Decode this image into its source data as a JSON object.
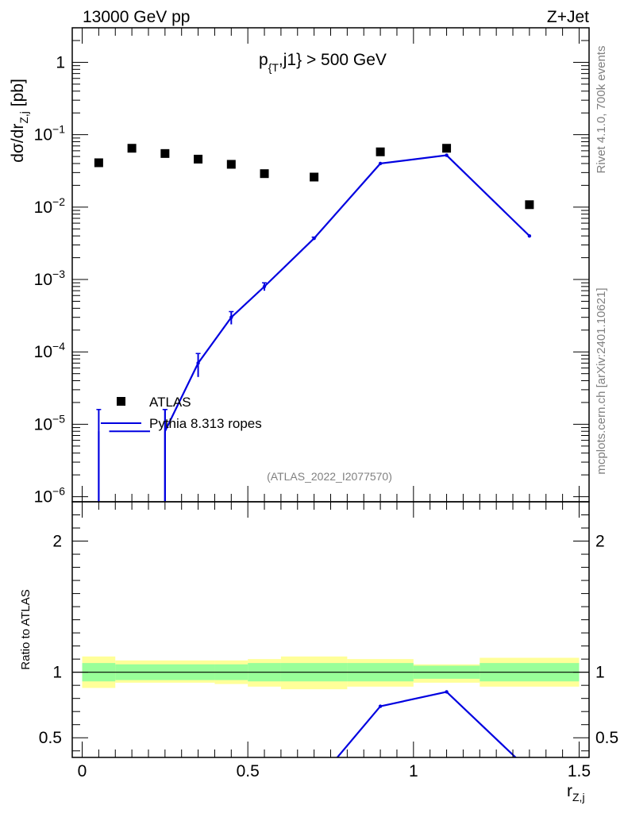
{
  "header": {
    "left": "13000 GeV pp",
    "right": "Z+Jet",
    "cut_label": "p_{T},j1} > 500 GeV",
    "cut_main": "p",
    "cut_sub": "{T",
    "cut_rest": ",j1} > 500 GeV"
  },
  "side_labels": {
    "rivet": "Rivet 4.1.0,  700k events",
    "mcplots": "mcplots.cern.ch [arXiv:2401.10621]"
  },
  "analysis_id": "(ATLAS_2022_I2077570)",
  "legend": {
    "data": "ATLAS",
    "mc": "Pythia 8.313 ropes"
  },
  "colors": {
    "data": "#000000",
    "mc": "#0000e0",
    "band_inner": "#99ff99",
    "band_outer": "#ffff99"
  },
  "chart_data": [
    {
      "type": "scatter",
      "title": "p_{T},j1} > 500 GeV",
      "xlabel": "r_{Z,j}",
      "xlabel_main": "r",
      "xlabel_sub": "Z,j",
      "ylabel": "dσ/dr_{Z,j} [pb]",
      "ylabel_main": "dσ/dr",
      "ylabel_sub": "Z,j",
      "ylabel_unit": " [pb]",
      "yscale": "log",
      "ylim": [
        8.5e-07,
        3.0
      ],
      "xlim": [
        -0.03,
        1.53
      ],
      "yticks": [
        {
          "v": 1,
          "base": "1",
          "exp": ""
        },
        {
          "v": 0.1,
          "base": "10",
          "exp": "−1"
        },
        {
          "v": 0.01,
          "base": "10",
          "exp": "−2"
        },
        {
          "v": 0.001,
          "base": "10",
          "exp": "−3"
        },
        {
          "v": 0.0001,
          "base": "10",
          "exp": "−4"
        },
        {
          "v": 1e-05,
          "base": "10",
          "exp": "−5"
        },
        {
          "v": 1e-06,
          "base": "10",
          "exp": "−6"
        }
      ],
      "series": [
        {
          "name": "ATLAS",
          "marker": "square",
          "x": [
            0.05,
            0.15,
            0.25,
            0.35,
            0.45,
            0.55,
            0.7,
            0.9,
            1.1,
            1.35
          ],
          "y": [
            0.041,
            0.065,
            0.055,
            0.046,
            0.039,
            0.029,
            0.026,
            0.058,
            0.065,
            0.0108
          ]
        },
        {
          "name": "Pythia 8.313 ropes",
          "marker": "line",
          "bins": [
            [
              0.0,
              0.1
            ],
            [
              0.1,
              0.2
            ],
            [
              0.2,
              0.3
            ],
            [
              0.3,
              0.4
            ],
            [
              0.4,
              0.5
            ],
            [
              0.5,
              0.6
            ],
            [
              0.6,
              0.8
            ],
            [
              0.8,
              1.0
            ],
            [
              1.0,
              1.2
            ],
            [
              1.2,
              1.5
            ]
          ],
          "x": [
            0.05,
            0.15,
            0.25,
            0.35,
            0.45,
            0.55,
            0.7,
            0.9,
            1.1,
            1.35
          ],
          "y": [
            8e-06,
            8e-06,
            8e-06,
            7e-05,
            0.0003,
            0.0008,
            0.0037,
            0.04,
            0.052,
            0.004
          ],
          "yerr_low": [
            7.2e-06,
            7.2e-06,
            7.2e-06,
            2.5e-05,
            6e-05,
            0.0001,
            0.00015,
            0,
            0,
            0
          ],
          "yerr_high": [
            8e-06,
            8e-06,
            8e-06,
            2.5e-05,
            6e-05,
            0.0001,
            0.00015,
            0,
            0,
            0
          ]
        }
      ]
    },
    {
      "type": "line",
      "ylabel": "Ratio to ATLAS",
      "xlabel": "r_{Z,j}",
      "ylim": [
        0.35,
        2.3
      ],
      "xlim": [
        -0.03,
        1.53
      ],
      "yticks": [
        0.5,
        1,
        2
      ],
      "xticks": [
        0,
        0.5,
        1,
        1.5
      ],
      "xtick_labels": [
        "0",
        "0.5",
        "1",
        "1.5"
      ],
      "ytick_labels": [
        "0.5",
        "1",
        "2"
      ],
      "bands": {
        "bins": [
          [
            0.0,
            0.1
          ],
          [
            0.1,
            0.4
          ],
          [
            0.4,
            0.5
          ],
          [
            0.5,
            0.6
          ],
          [
            0.6,
            0.8
          ],
          [
            0.8,
            1.0
          ],
          [
            1.0,
            1.2
          ],
          [
            1.2,
            1.5
          ]
        ],
        "inner_low": [
          0.93,
          0.94,
          0.94,
          0.93,
          0.93,
          0.93,
          0.95,
          0.93
        ],
        "inner_high": [
          1.07,
          1.06,
          1.06,
          1.07,
          1.07,
          1.07,
          1.05,
          1.07
        ],
        "outer_low": [
          0.88,
          0.92,
          0.91,
          0.89,
          0.87,
          0.89,
          0.92,
          0.89
        ],
        "outer_high": [
          1.12,
          1.09,
          1.09,
          1.1,
          1.12,
          1.1,
          1.06,
          1.11
        ]
      },
      "series": [
        {
          "name": "Pythia 8.313 ropes / ATLAS",
          "x": [
            0.7,
            0.9,
            1.1,
            1.35
          ],
          "y": [
            0.14,
            0.74,
            0.85,
            0.25
          ]
        }
      ]
    }
  ]
}
